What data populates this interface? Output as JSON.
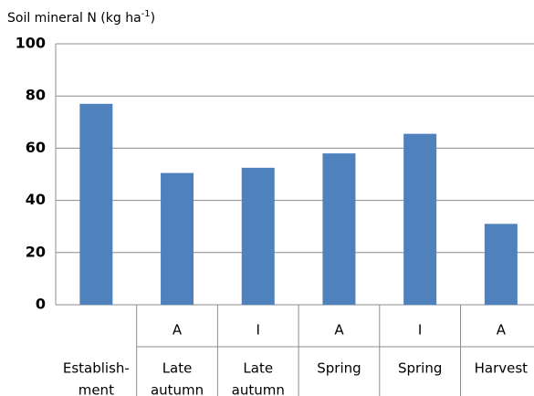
{
  "chart_data": {
    "type": "bar",
    "title": [
      "Soil mineral N (kg ha",
      "-1",
      ")"
    ],
    "categories": [
      [
        "Establish-",
        "ment"
      ],
      [
        "Late",
        "autumn"
      ],
      [
        "Late",
        "autumn"
      ],
      [
        "Spring"
      ],
      [
        "Spring"
      ],
      [
        "Harvest"
      ]
    ],
    "group_labels": [
      null,
      "A",
      "I",
      "A",
      "I",
      "A"
    ],
    "values": [
      77,
      50.5,
      52.5,
      58,
      65.5,
      31
    ],
    "color": "#4f81bd",
    "ylim": [
      0,
      100
    ],
    "yticks": [
      0,
      20,
      40,
      60,
      80,
      100
    ],
    "grid": true
  }
}
